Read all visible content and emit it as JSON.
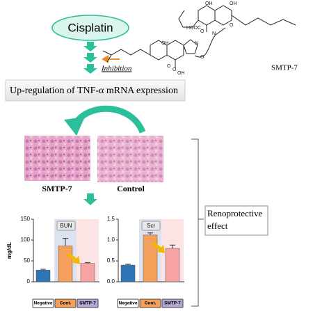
{
  "cisplatin": "Cisplatin",
  "inhibition": "Inhibition",
  "upregulation": "Up-regulation of TNF-α mRNA expression",
  "compound": "SMTP-7",
  "structure_labels": [
    "OH",
    "OH",
    "HOOC",
    "O",
    "N",
    "O",
    "N",
    "O",
    "O",
    "OH",
    "OH",
    "O"
  ],
  "histology": [
    "SMTP-7",
    "Control"
  ],
  "renoprotective": "Renoprotective effect",
  "chart_data": [
    {
      "type": "bar",
      "label": "BUN",
      "ylabel": "mg/dL",
      "categories": [
        "Negative",
        "Cont.",
        "SMTP-7"
      ],
      "values": [
        28,
        86,
        44
      ],
      "errors": [
        2,
        18,
        2
      ],
      "colors": [
        "#2e75b6",
        "#f4a05a",
        "#f7a3a3"
      ],
      "category_colors": [
        "#ffffff",
        "#f4a05a",
        "#b4a7d6"
      ],
      "band_colors": [
        null,
        "#dce2f0",
        "#fde4e4"
      ],
      "ylim": [
        0,
        150
      ],
      "yticks": [
        0,
        50,
        100,
        150
      ]
    },
    {
      "type": "bar",
      "label": "Scr",
      "categories": [
        "Negative",
        "Cont.",
        "SMTP-7"
      ],
      "values": [
        0.4,
        1.12,
        0.8
      ],
      "errors": [
        0.02,
        0.05,
        0.08
      ],
      "colors": [
        "#2e75b6",
        "#f4a05a",
        "#f7a3a3"
      ],
      "category_colors": [
        "#ffffff",
        "#f4a05a",
        "#b4a7d6"
      ],
      "band_colors": [
        null,
        "#dce2f0",
        "#fde4e4"
      ],
      "ylim": [
        0,
        1.5
      ],
      "yticks": [
        {
          "value": 0,
          "label": "0.0"
        },
        {
          "value": 0.5,
          "label": "0.5"
        },
        {
          "value": 1,
          "label": "1.0"
        },
        {
          "value": 1.5,
          "label": "1.5"
        }
      ]
    }
  ]
}
